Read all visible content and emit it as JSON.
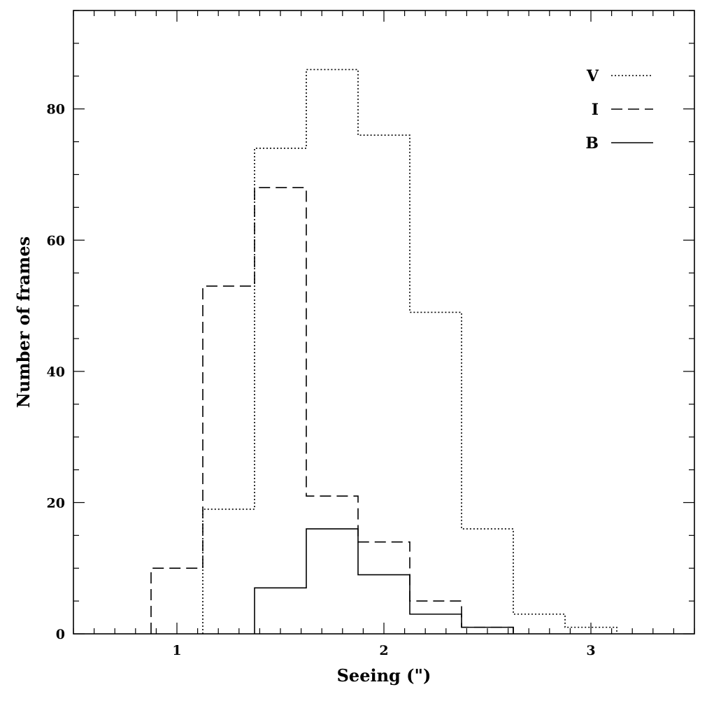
{
  "chart_data": {
    "type": "histogram",
    "xlabel": "Seeing (\")",
    "ylabel": "Number of frames",
    "xlim": [
      0.5,
      3.5
    ],
    "ylim": [
      0,
      95
    ],
    "x_ticks": [
      1,
      2,
      3
    ],
    "y_ticks": [
      0,
      20,
      40,
      60,
      80
    ],
    "x_minor_step": 0.1,
    "y_minor_step": 5,
    "legend_position": "top-right",
    "series": [
      {
        "name": "V",
        "line_style": "dotted",
        "bins": [
          {
            "x0": 1.125,
            "x1": 1.375,
            "count": 19
          },
          {
            "x0": 1.375,
            "x1": 1.625,
            "count": 74
          },
          {
            "x0": 1.625,
            "x1": 1.875,
            "count": 86
          },
          {
            "x0": 1.875,
            "x1": 2.125,
            "count": 76
          },
          {
            "x0": 2.125,
            "x1": 2.375,
            "count": 49
          },
          {
            "x0": 2.375,
            "x1": 2.625,
            "count": 16
          },
          {
            "x0": 2.625,
            "x1": 2.875,
            "count": 3
          },
          {
            "x0": 2.875,
            "x1": 3.125,
            "count": 1
          }
        ]
      },
      {
        "name": "I",
        "line_style": "dashed",
        "bins": [
          {
            "x0": 0.875,
            "x1": 1.125,
            "count": 10
          },
          {
            "x0": 1.125,
            "x1": 1.375,
            "count": 53
          },
          {
            "x0": 1.375,
            "x1": 1.625,
            "count": 68
          },
          {
            "x0": 1.625,
            "x1": 1.875,
            "count": 21
          },
          {
            "x0": 1.875,
            "x1": 2.125,
            "count": 14
          },
          {
            "x0": 2.125,
            "x1": 2.375,
            "count": 5
          },
          {
            "x0": 2.375,
            "x1": 2.625,
            "count": 1
          }
        ]
      },
      {
        "name": "B",
        "line_style": "solid",
        "bins": [
          {
            "x0": 1.375,
            "x1": 1.625,
            "count": 7
          },
          {
            "x0": 1.625,
            "x1": 1.875,
            "count": 16
          },
          {
            "x0": 1.875,
            "x1": 2.125,
            "count": 9
          },
          {
            "x0": 2.125,
            "x1": 2.375,
            "count": 3
          },
          {
            "x0": 2.375,
            "x1": 2.625,
            "count": 1
          }
        ]
      }
    ]
  }
}
